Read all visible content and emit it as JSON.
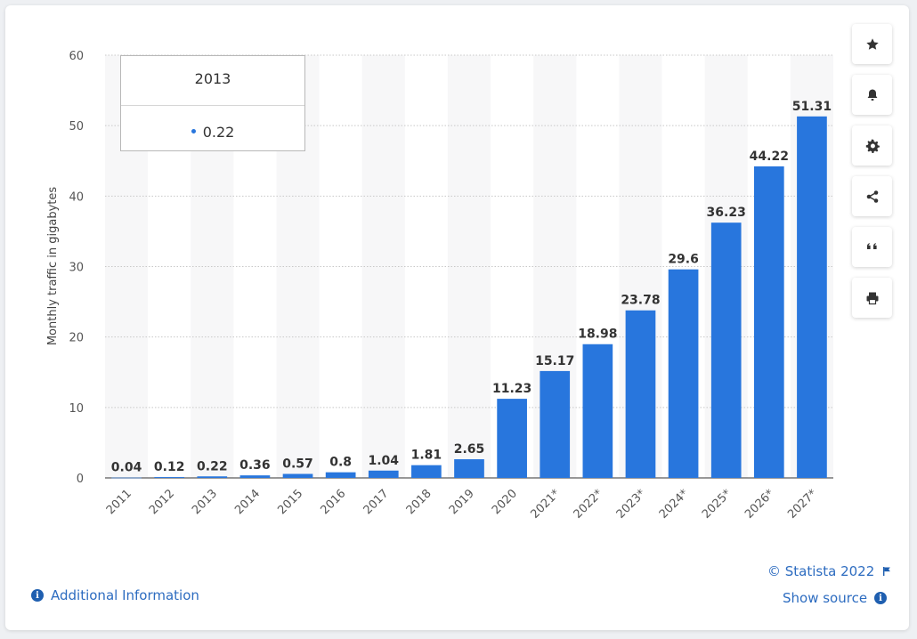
{
  "chart_data": {
    "type": "bar",
    "categories": [
      "2011",
      "2012",
      "2013",
      "2014",
      "2015",
      "2016",
      "2017",
      "2018",
      "2019",
      "2020",
      "2021*",
      "2022*",
      "2023*",
      "2024*",
      "2025*",
      "2026*",
      "2027*"
    ],
    "values": [
      0.04,
      0.12,
      0.22,
      0.36,
      0.57,
      0.8,
      1.04,
      1.81,
      2.65,
      11.23,
      15.17,
      18.98,
      23.78,
      29.6,
      36.23,
      44.22,
      51.31
    ],
    "value_labels": [
      "0.04",
      "0.12",
      "0.22",
      "0.36",
      "0.57",
      "0.8",
      "1.04",
      "1.81",
      "2.65",
      "11.23",
      "15.17",
      "18.98",
      "23.78",
      "29.6",
      "36.23",
      "44.22",
      "51.31"
    ],
    "ylabel": "Monthly traffic in gigabytes",
    "xlabel": "",
    "ylim": [
      0,
      60
    ],
    "yticks": [
      0,
      10,
      20,
      30,
      40,
      50,
      60
    ],
    "grid": true,
    "bar_color": "#2876dd"
  },
  "tooltip": {
    "title": "2013",
    "value": "0.22"
  },
  "side_buttons": [
    {
      "icon": "star-icon",
      "name": "favorite-button"
    },
    {
      "icon": "bell-icon",
      "name": "notification-button"
    },
    {
      "icon": "gear-icon",
      "name": "settings-button"
    },
    {
      "icon": "share-icon",
      "name": "share-button"
    },
    {
      "icon": "quote-icon",
      "name": "cite-button"
    },
    {
      "icon": "print-icon",
      "name": "print-button"
    }
  ],
  "footer": {
    "copyright": "© Statista 2022",
    "show_source": "Show source",
    "additional_info": "Additional Information"
  }
}
